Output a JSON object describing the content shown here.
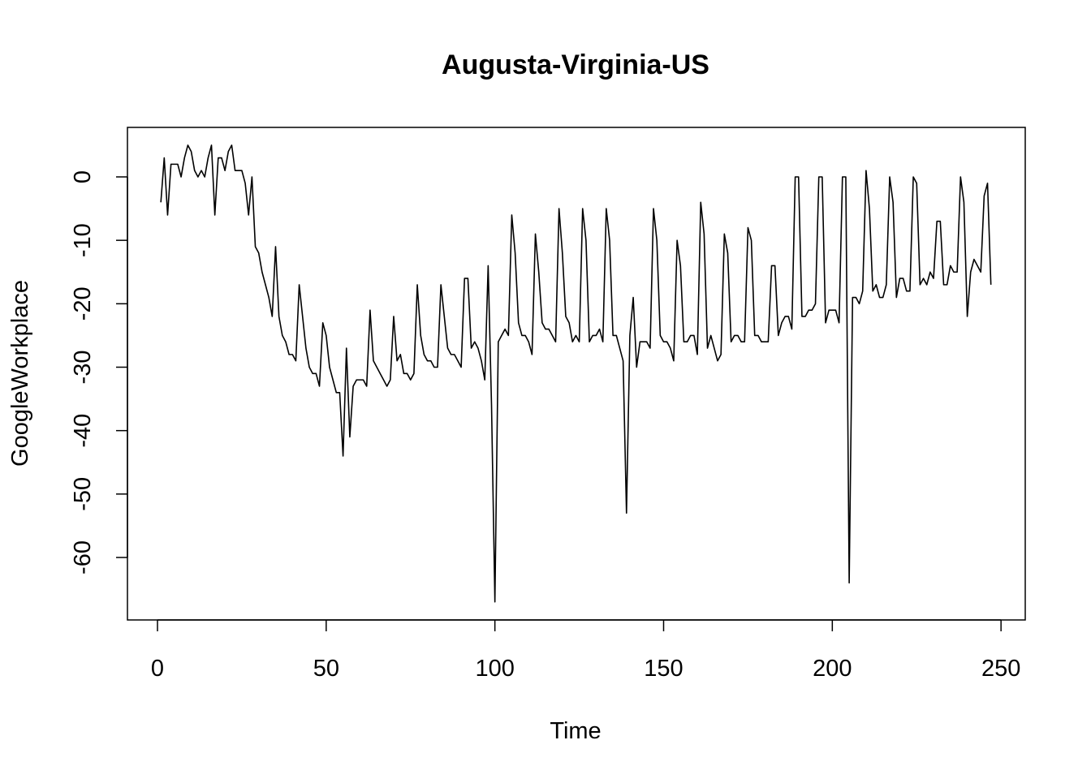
{
  "chart_data": {
    "type": "line",
    "title": "Augusta-Virginia-US",
    "xlabel": "Time",
    "ylabel": "GoogleWorkplace",
    "xlim": [
      1,
      248
    ],
    "ylim": [
      -67,
      5
    ],
    "x_ticks": [
      0,
      50,
      100,
      150,
      200,
      250
    ],
    "y_ticks": [
      0,
      -10,
      -20,
      -30,
      -40,
      -50,
      -60
    ],
    "x_tick_labels": [
      "0",
      "50",
      "100",
      "150",
      "200",
      "250"
    ],
    "y_tick_labels": [
      "0",
      "-10",
      "-20",
      "-30",
      "-40",
      "-50",
      "-60"
    ],
    "grid": false,
    "legend": "none",
    "line_color": "#000000",
    "series": [
      {
        "values": [
          -4,
          3,
          -6,
          2,
          2,
          2,
          0,
          3,
          5,
          4,
          1,
          0,
          1,
          0,
          3,
          5,
          -6,
          3,
          3,
          1,
          4,
          5,
          1,
          1,
          1,
          -1,
          -6,
          0,
          -11,
          -12,
          -15,
          -17,
          -19,
          -22,
          -11,
          -22,
          -25,
          -26,
          -28,
          -28,
          -29,
          -17,
          -22,
          -27,
          -30,
          -31,
          -31,
          -33,
          -23,
          -25,
          -30,
          -32,
          -34,
          -34,
          -44,
          -27,
          -41,
          -33,
          -32,
          -32,
          -32,
          -33,
          -21,
          -29,
          -30,
          -31,
          -32,
          -33,
          -32,
          -22,
          -29,
          -28,
          -31,
          -31,
          -32,
          -31,
          -17,
          -25,
          -28,
          -29,
          -29,
          -30,
          -30,
          -17,
          -22,
          -27,
          -28,
          -28,
          -29,
          -30,
          -16,
          -16,
          -27,
          -26,
          -27,
          -29,
          -32,
          -14,
          -36,
          -67,
          -26,
          -25,
          -24,
          -25,
          -6,
          -12,
          -23,
          -25,
          -25,
          -26,
          -28,
          -9,
          -15,
          -23,
          -24,
          -24,
          -25,
          -26,
          -5,
          -12,
          -22,
          -23,
          -26,
          -25,
          -26,
          -5,
          -10,
          -26,
          -25,
          -25,
          -24,
          -26,
          -5,
          -10,
          -25,
          -25,
          -27,
          -29,
          -53,
          -25,
          -19,
          -30,
          -26,
          -26,
          -26,
          -27,
          -5,
          -10,
          -25,
          -26,
          -26,
          -27,
          -29,
          -10,
          -14,
          -26,
          -26,
          -25,
          -25,
          -28,
          -4,
          -9,
          -27,
          -25,
          -27,
          -29,
          -28,
          -9,
          -12,
          -26,
          -25,
          -25,
          -26,
          -26,
          -8,
          -10,
          -25,
          -25,
          -26,
          -26,
          -26,
          -14,
          -14,
          -25,
          -23,
          -22,
          -22,
          -24,
          0,
          0,
          -22,
          -22,
          -21,
          -21,
          -20,
          0,
          0,
          -23,
          -21,
          -21,
          -21,
          -23,
          0,
          0,
          -64,
          -19,
          -19,
          -20,
          -18,
          1,
          -5,
          -18,
          -17,
          -19,
          -19,
          -17,
          0,
          -4,
          -19,
          -16,
          -16,
          -18,
          -18,
          0,
          -1,
          -17,
          -16,
          -17,
          -15,
          -16,
          -7,
          -7,
          -17,
          -17,
          -14,
          -15,
          -15,
          0,
          -4,
          -22,
          -15,
          -13,
          -14,
          -15,
          -3,
          -1,
          -17
        ]
      }
    ]
  }
}
